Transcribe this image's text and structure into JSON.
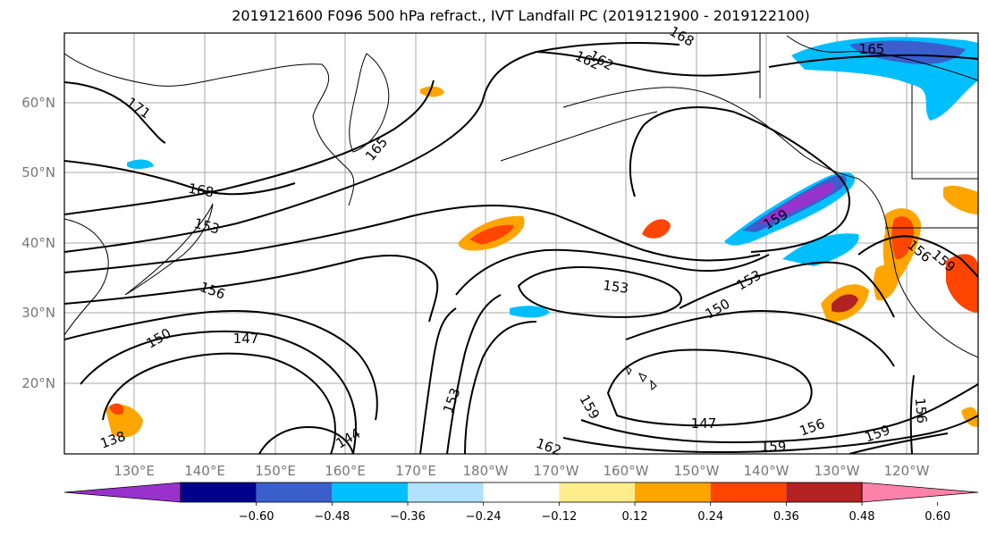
{
  "title": "2019121600 F096 500 hPa refract., IVT Landfall PC (2019121900 - 2019122100)",
  "axes": {
    "lat_labels": [
      "60°N",
      "50°N",
      "40°N",
      "30°N",
      "20°N"
    ],
    "lon_labels": [
      "130°E",
      "140°E",
      "150°E",
      "160°E",
      "170°E",
      "180°W",
      "170°W",
      "160°W",
      "150°W",
      "140°W",
      "130°W",
      "120°W"
    ]
  },
  "contour_labels": [
    "171",
    "168",
    "165",
    "162",
    "159",
    "156",
    "153",
    "150",
    "147",
    "144",
    "165",
    "162",
    "168",
    "153",
    "153",
    "150",
    "147",
    "159",
    "159",
    "156",
    "156",
    "159",
    "153",
    "156",
    "138",
    "159",
    "162"
  ],
  "colorbar": {
    "tick_labels": [
      "−0.60",
      "−0.48",
      "−0.36",
      "−0.24",
      "−0.12",
      "0.12",
      "0.24",
      "0.36",
      "0.48",
      "0.60"
    ],
    "colors": [
      "#9932cc",
      "#00008b",
      "#3a5fcd",
      "#00bfff",
      "#b0e2ff",
      "#ffffff",
      "#ffec8b",
      "#ffa500",
      "#ff4500",
      "#b22222",
      "#ff82ab"
    ]
  }
}
